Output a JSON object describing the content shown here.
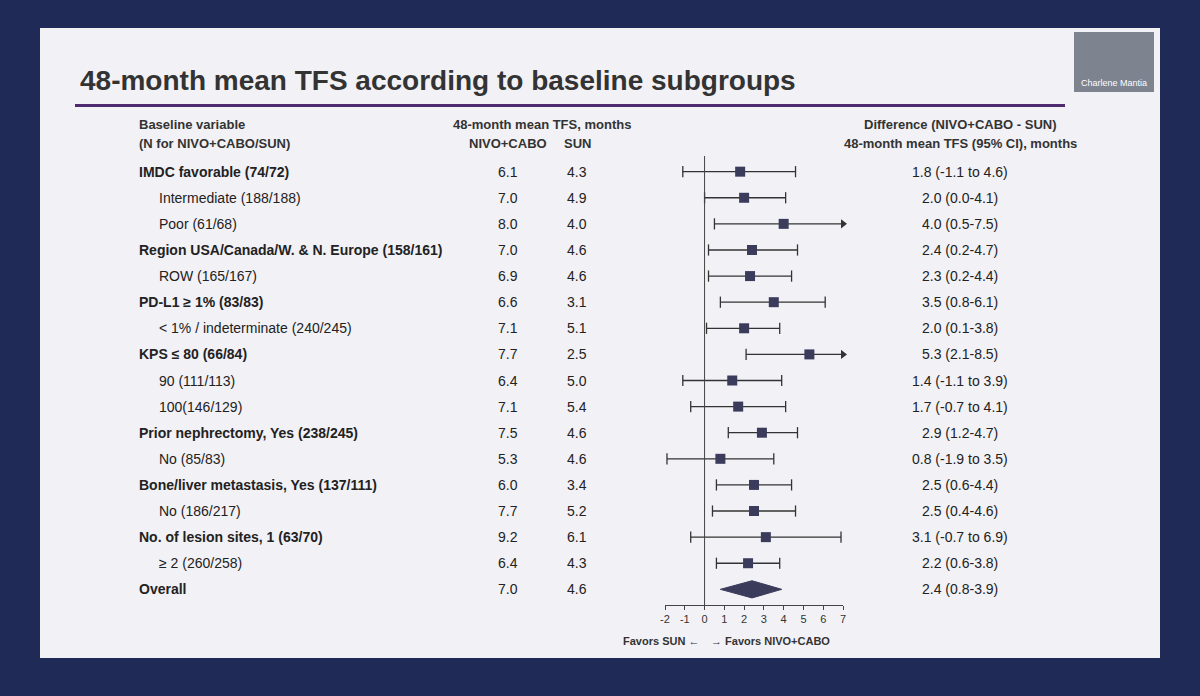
{
  "chart_data": {
    "type": "forest",
    "title": "48-month mean TFS according to baseline subgroups",
    "presenter": "Charlene Mantia",
    "columns": {
      "variable": [
        "Baseline variable",
        "(N for NIVO+CABO/SUN)"
      ],
      "mean_header": "48-month mean TFS, months",
      "arms": [
        "NIVO+CABO",
        "SUN"
      ],
      "difference": [
        "Difference (NIVO+CABO - SUN)",
        "48-month mean TFS (95% CI), months"
      ]
    },
    "subgroups": [
      [
        {
          "label": "IMDC favorable (74/72)",
          "nivo_cabo": "6.1",
          "sun": "4.3",
          "diff": 1.8,
          "ci": [
            -1.1,
            4.6
          ],
          "diff_label": "1.8 (-1.1 to 4.6)"
        },
        {
          "label": "Intermediate (188/188)",
          "nivo_cabo": "7.0",
          "sun": "4.9",
          "diff": 2.0,
          "ci": [
            0.0,
            4.1
          ],
          "diff_label": "2.0 (0.0-4.1)"
        },
        {
          "label": "Poor (61/68)",
          "nivo_cabo": "8.0",
          "sun": "4.0",
          "diff": 4.0,
          "ci": [
            0.5,
            7.5
          ],
          "diff_label": "4.0 (0.5-7.5)"
        }
      ],
      [
        {
          "label": "Region USA/Canada/W. & N. Europe (158/161)",
          "nivo_cabo": "7.0",
          "sun": "4.6",
          "diff": 2.4,
          "ci": [
            0.2,
            4.7
          ],
          "diff_label": "2.4 (0.2-4.7)"
        },
        {
          "label": "ROW (165/167)",
          "nivo_cabo": "6.9",
          "sun": "4.6",
          "diff": 2.3,
          "ci": [
            0.2,
            4.4
          ],
          "diff_label": "2.3 (0.2-4.4)"
        }
      ],
      [
        {
          "label": "PD-L1 ≥ 1% (83/83)",
          "nivo_cabo": "6.6",
          "sun": "3.1",
          "diff": 3.5,
          "ci": [
            0.8,
            6.1
          ],
          "diff_label": "3.5 (0.8-6.1)"
        },
        {
          "label": "< 1% / indeterminate (240/245)",
          "nivo_cabo": "7.1",
          "sun": "5.1",
          "diff": 2.0,
          "ci": [
            0.1,
            3.8
          ],
          "diff_label": "2.0 (0.1-3.8)"
        }
      ],
      [
        {
          "label": "KPS ≤ 80 (66/84)",
          "nivo_cabo": "7.7",
          "sun": "2.5",
          "diff": 5.3,
          "ci": [
            2.1,
            8.5
          ],
          "diff_label": "5.3 (2.1-8.5)"
        },
        {
          "label": "90 (111/113)",
          "nivo_cabo": "6.4",
          "sun": "5.0",
          "diff": 1.4,
          "ci": [
            -1.1,
            3.9
          ],
          "diff_label": "1.4 (-1.1 to 3.9)"
        },
        {
          "label": "100(146/129)",
          "nivo_cabo": "7.1",
          "sun": "5.4",
          "diff": 1.7,
          "ci": [
            -0.7,
            4.1
          ],
          "diff_label": "1.7 (-0.7 to 4.1)"
        }
      ],
      [
        {
          "label": "Prior nephrectomy, Yes (238/245)",
          "nivo_cabo": "7.5",
          "sun": "4.6",
          "diff": 2.9,
          "ci": [
            1.2,
            4.7
          ],
          "diff_label": "2.9 (1.2-4.7)"
        },
        {
          "label": "No (85/83)",
          "nivo_cabo": "5.3",
          "sun": "4.6",
          "diff": 0.8,
          "ci": [
            -1.9,
            3.5
          ],
          "diff_label": "0.8 (-1.9 to 3.5)"
        }
      ],
      [
        {
          "label": "Bone/liver metastasis, Yes (137/111)",
          "nivo_cabo": "6.0",
          "sun": "3.4",
          "diff": 2.5,
          "ci": [
            0.6,
            4.4
          ],
          "diff_label": "2.5 (0.6-4.4)"
        },
        {
          "label": "No (186/217)",
          "nivo_cabo": "7.7",
          "sun": "5.2",
          "diff": 2.5,
          "ci": [
            0.4,
            4.6
          ],
          "diff_label": "2.5 (0.4-4.6)"
        }
      ],
      [
        {
          "label": "No. of lesion sites, 1 (63/70)",
          "nivo_cabo": "9.2",
          "sun": "6.1",
          "diff": 3.1,
          "ci": [
            -0.7,
            6.9
          ],
          "diff_label": "3.1 (-0.7 to 6.9)"
        },
        {
          "label": "≥ 2 (260/258)",
          "nivo_cabo": "6.4",
          "sun": "4.3",
          "diff": 2.2,
          "ci": [
            0.6,
            3.8
          ],
          "diff_label": "2.2 (0.6-3.8)"
        }
      ]
    ],
    "overall": {
      "label": "Overall",
      "nivo_cabo": "7.0",
      "sun": "4.6",
      "diff": 2.4,
      "ci": [
        0.8,
        3.9
      ],
      "diff_label": "2.4 (0.8-3.9)"
    },
    "x_labels": [
      "Favors SUN ←",
      "→ Favors NIVO+CABO"
    ],
    "xlim": [
      -2,
      7
    ],
    "xticks": [
      -2,
      -1,
      0,
      1,
      2,
      3,
      4,
      5,
      6,
      7
    ],
    "color": "#3b3b5c"
  }
}
